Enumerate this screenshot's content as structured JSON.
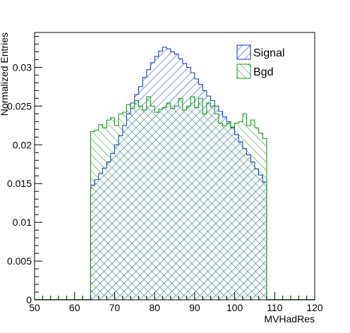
{
  "chart_data": {
    "type": "histogram",
    "xlabel": "MVHadRes",
    "ylabel": "Normalized Entries",
    "xlim": [
      50,
      120
    ],
    "ylim": [
      0,
      0.0345
    ],
    "x_ticks": [
      50,
      60,
      70,
      80,
      90,
      100,
      110,
      120
    ],
    "x_tick_labels": [
      "50",
      "60",
      "70",
      "80",
      "90",
      "100",
      "110",
      "120"
    ],
    "y_ticks": [
      0,
      0.005,
      0.01,
      0.015,
      0.02,
      0.025,
      0.03
    ],
    "y_tick_labels": [
      "0",
      "0.005",
      "0.01",
      "0.015",
      "0.02",
      "0.025",
      "0.03"
    ],
    "bin_start": 64,
    "bin_width": 1,
    "legend_position": "top-right",
    "series": [
      {
        "name": "Signal",
        "color": "#0033cc",
        "hatch": "diagonal-down",
        "values": [
          0.0148,
          0.0155,
          0.0163,
          0.017,
          0.0178,
          0.0189,
          0.02,
          0.0212,
          0.0225,
          0.024,
          0.0254,
          0.0265,
          0.0275,
          0.0287,
          0.0297,
          0.0306,
          0.0314,
          0.0321,
          0.0326,
          0.0324,
          0.032,
          0.0317,
          0.0311,
          0.0305,
          0.03,
          0.0293,
          0.0285,
          0.0278,
          0.027,
          0.0263,
          0.0257,
          0.025,
          0.0243,
          0.0236,
          0.023,
          0.0222,
          0.0213,
          0.0204,
          0.0195,
          0.0187,
          0.0178,
          0.0169,
          0.0161,
          0.0152
        ]
      },
      {
        "name": "Bgd",
        "color": "#009900",
        "hatch": "diagonal-up",
        "values": [
          0.0217,
          0.0219,
          0.0226,
          0.0222,
          0.0232,
          0.0235,
          0.0225,
          0.024,
          0.0242,
          0.0252,
          0.0247,
          0.0257,
          0.025,
          0.0245,
          0.0262,
          0.025,
          0.0242,
          0.0246,
          0.0248,
          0.0254,
          0.0247,
          0.025,
          0.026,
          0.0245,
          0.025,
          0.0262,
          0.0248,
          0.026,
          0.024,
          0.0254,
          0.025,
          0.024,
          0.0228,
          0.0225,
          0.0228,
          0.0223,
          0.0228,
          0.023,
          0.024,
          0.0225,
          0.0232,
          0.0222,
          0.0215,
          0.0208
        ]
      }
    ]
  }
}
